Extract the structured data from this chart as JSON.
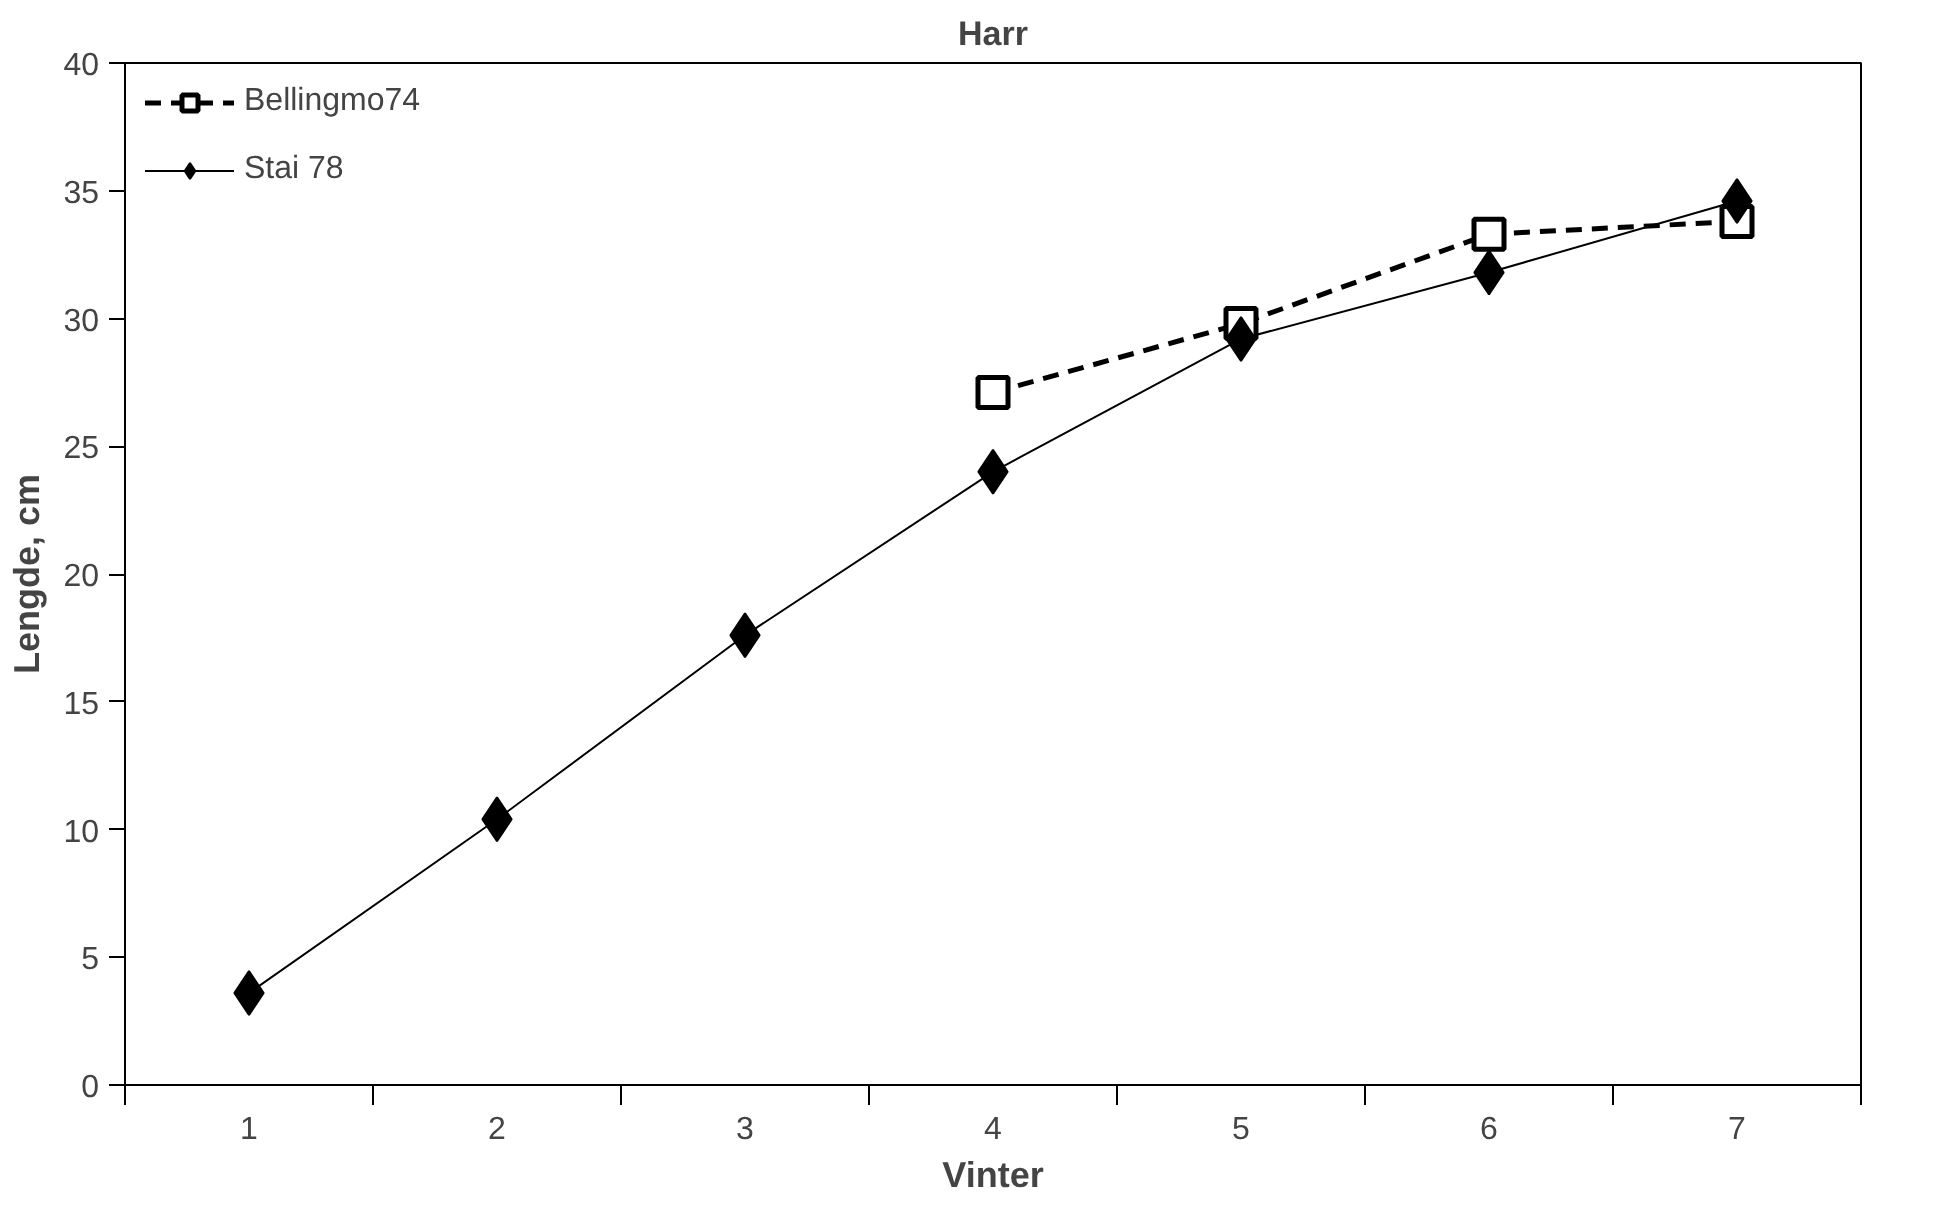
{
  "chart_data": {
    "type": "line",
    "title": "Harr",
    "xlabel": "Vinter",
    "ylabel": "Lengde, cm",
    "categories": [
      "1",
      "2",
      "3",
      "4",
      "5",
      "6",
      "7"
    ],
    "series": [
      {
        "name": "Bellingmo74",
        "color": "#000000",
        "marker": "square",
        "line_style": "dashed",
        "values": [
          null,
          null,
          null,
          27.1,
          29.8,
          33.3,
          33.8
        ]
      },
      {
        "name": "Stai 78",
        "color": "#000000",
        "marker": "diamond",
        "line_style": "solid",
        "values": [
          3.6,
          10.4,
          17.6,
          24.0,
          29.2,
          31.8,
          34.6
        ]
      }
    ],
    "ylim": [
      0,
      40
    ],
    "yticks": [
      0,
      5,
      10,
      15,
      20,
      25,
      30,
      35,
      40
    ],
    "grid": false,
    "legend": "top left"
  }
}
